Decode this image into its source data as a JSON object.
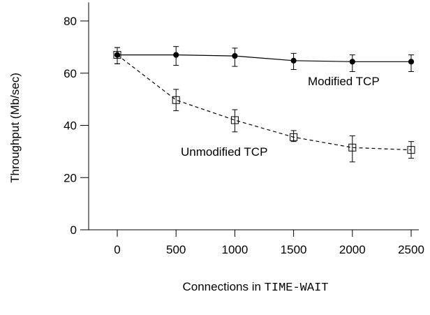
{
  "chart_data": {
    "type": "line",
    "title": "",
    "xlabel_prefix": "Connections in ",
    "xlabel_code": "TIME-WAIT",
    "ylabel": "Throughput (Mb/sec)",
    "x": [
      0,
      500,
      1000,
      1500,
      2000,
      2500
    ],
    "xlim": [
      -150,
      2600
    ],
    "ylim": [
      0,
      85
    ],
    "xticks": [
      0,
      500,
      1000,
      1500,
      2000,
      2500
    ],
    "yticks": [
      0,
      20,
      40,
      60,
      80
    ],
    "grid": false,
    "legend": "none",
    "series": [
      {
        "name": "Modified TCP",
        "marker": "filled-circle",
        "line_style": "solid",
        "color": "#000000",
        "values": [
          67,
          67,
          66.6,
          64.8,
          64.4,
          64.4
        ],
        "err_low": [
          63.6,
          63,
          62.6,
          61.4,
          60.6,
          60.6
        ],
        "err_high": [
          69.8,
          70.2,
          69.6,
          67.6,
          67,
          67
        ]
      },
      {
        "name": "Unmodified TCP",
        "marker": "open-square",
        "line_style": "dashed",
        "color": "#000000",
        "values": [
          67,
          49.7,
          42,
          35.5,
          31.5,
          30.6
        ],
        "err_low": [
          63.6,
          45.6,
          37.5,
          33.8,
          26,
          27.4
        ],
        "err_high": [
          69.8,
          53.8,
          46,
          38,
          36,
          33.8
        ]
      }
    ]
  }
}
